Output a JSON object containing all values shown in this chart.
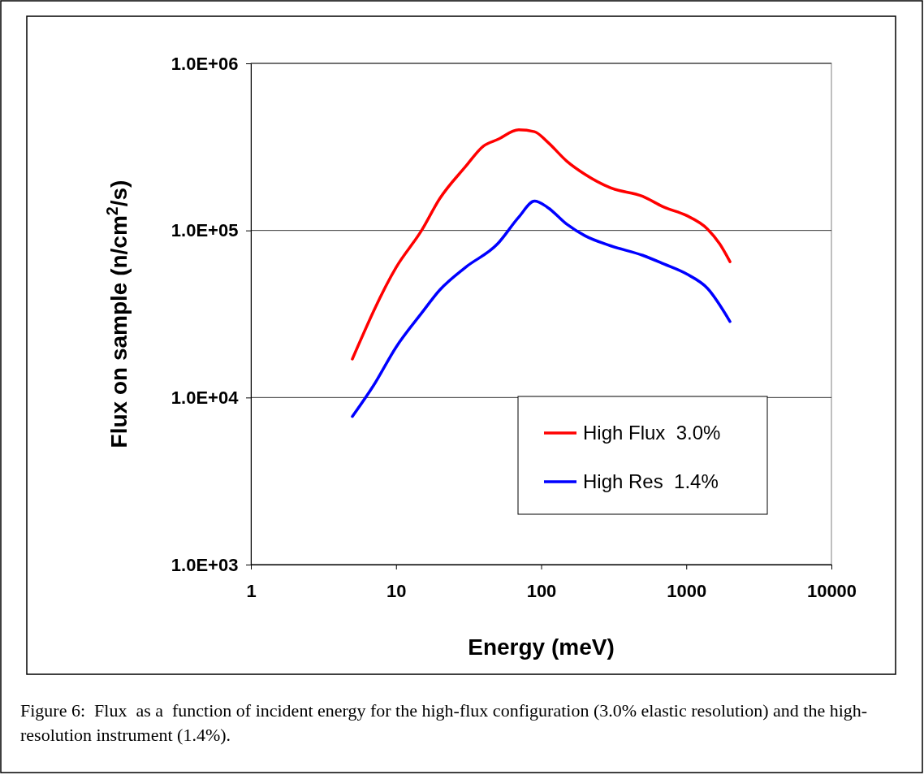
{
  "chart_data": {
    "type": "line",
    "xlabel": "Energy (meV)",
    "ylabel": "Flux on sample (n/cm$^{2}$/s)",
    "log": "xy",
    "xlim": [
      1,
      10000
    ],
    "xticks": [
      1,
      10,
      100,
      1000,
      10000
    ],
    "ylim": [
      1000,
      1000000
    ],
    "yticks": [
      {
        "value": 1000,
        "label": "1.0E+03"
      },
      {
        "value": 10000,
        "label": "1.0E+04"
      },
      {
        "value": 100000,
        "label": "1.0E+05"
      },
      {
        "value": 1000000,
        "label": "1.0E+06"
      }
    ],
    "grid": "y",
    "legend": "bottom right",
    "marker": "none",
    "line_style": "solid",
    "series": [
      {
        "name": "High Flux  3.0%",
        "color": "#ff0000",
        "x": [
          5,
          10,
          15,
          20,
          30,
          40,
          50,
          70,
          90,
          110,
          150,
          200,
          300,
          500,
          700,
          1000,
          1400,
          1700,
          2000
        ],
        "values": [
          17000,
          60000,
          100000,
          155000,
          240000,
          320000,
          350000,
          400000,
          390000,
          340000,
          260000,
          217000,
          180000,
          160000,
          138000,
          123000,
          102000,
          83000,
          65000
        ]
      },
      {
        "name": "High Res  1.4%",
        "color": "#0000ff",
        "x": [
          5,
          7,
          10,
          15,
          20,
          30,
          50,
          70,
          90,
          110,
          150,
          200,
          300,
          500,
          700,
          1000,
          1400,
          2000
        ],
        "values": [
          7700,
          11800,
          20000,
          32000,
          44000,
          60000,
          83000,
          120000,
          150000,
          138000,
          109000,
          93000,
          81000,
          71000,
          63000,
          55000,
          45000,
          28500
        ]
      }
    ],
    "annotations": [
      "Figure 6:  Flux  as a  function of incident energy for the high-flux configuration (3.0% elastic resolution) and the high-resolution instrument (1.4%)."
    ]
  }
}
